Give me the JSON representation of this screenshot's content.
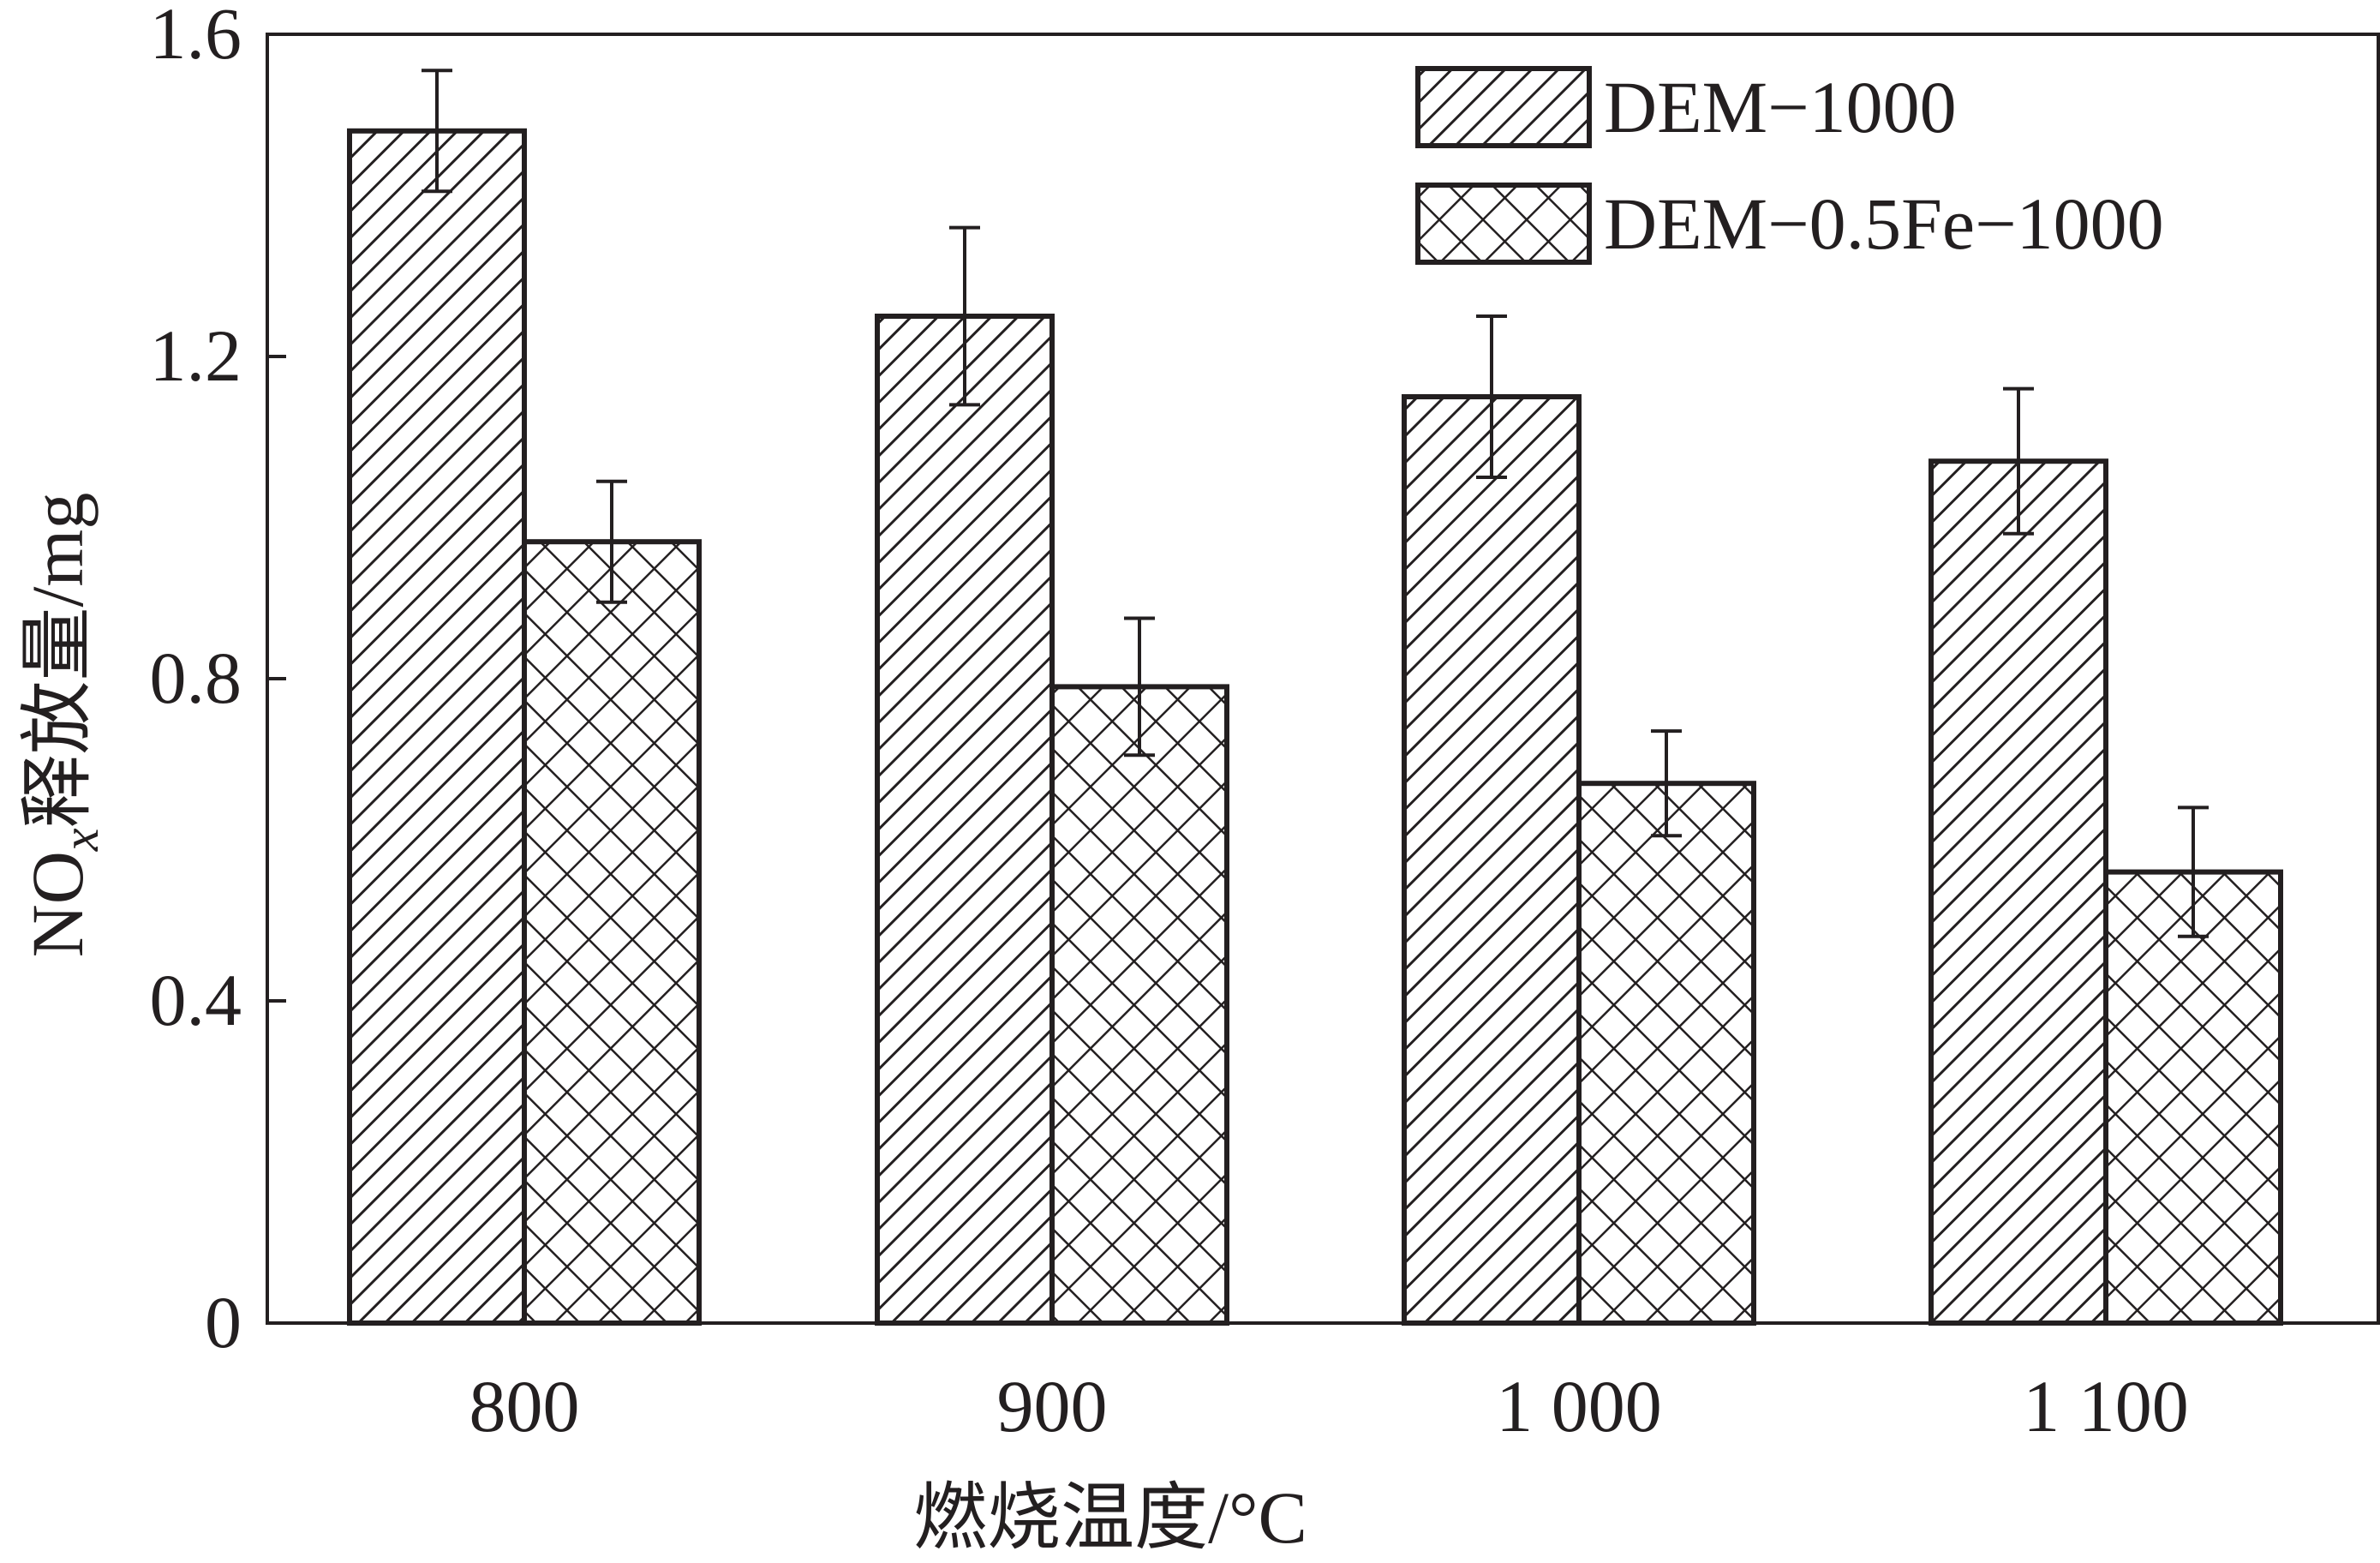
{
  "chart_data": {
    "type": "bar",
    "title": "",
    "xlabel": "燃烧温度/°C",
    "ylabel_parts": [
      "NO",
      "x",
      "释放量/mg"
    ],
    "categories": [
      "800",
      "900",
      "1 000",
      "1 100"
    ],
    "yticks": [
      "0",
      "0.4",
      "0.8",
      "1.2",
      "1.6"
    ],
    "ylim": [
      0,
      1.6
    ],
    "legend_position": "top-right",
    "series": [
      {
        "name": "DEM−1000",
        "pattern": "diagonal-hatch",
        "values": [
          1.48,
          1.25,
          1.15,
          1.07
        ],
        "errors": [
          0.075,
          0.11,
          0.1,
          0.09
        ]
      },
      {
        "name": "DEM−0.5Fe−1000",
        "pattern": "cross-hatch",
        "values": [
          0.97,
          0.79,
          0.67,
          0.56
        ],
        "errors": [
          0.075,
          0.085,
          0.065,
          0.08
        ]
      }
    ],
    "colors": {
      "ink": "#231f20",
      "background": "#ffffff"
    }
  }
}
